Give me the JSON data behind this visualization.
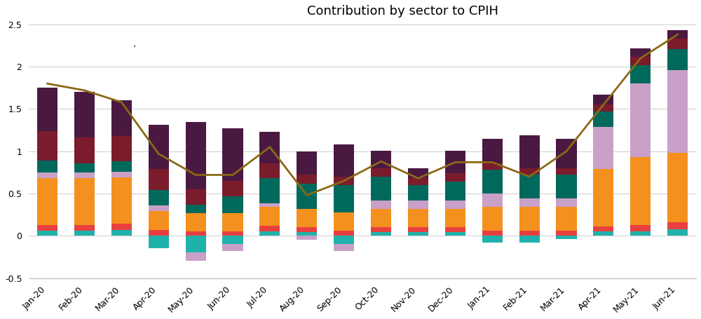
{
  "months": [
    "Jan-20",
    "Feb-20",
    "Mar-20",
    "Apr-20",
    "May-20",
    "Jun-20",
    "Jul-20",
    "Aug-20",
    "Sep-20",
    "Oct-20",
    "Nov-20",
    "Dec-20",
    "Jan-21",
    "Feb-21",
    "Mar-21",
    "Apr-21",
    "May-21",
    "Jun-21"
  ],
  "title": "Contribution by sector to CPIH",
  "ylim": [
    -0.5,
    2.5
  ],
  "yticks": [
    -0.5,
    0,
    0.5,
    1,
    1.5,
    2,
    2.5
  ],
  "line_color": "#8B6914",
  "line_values": [
    1.8,
    1.72,
    1.58,
    0.97,
    0.72,
    0.72,
    1.05,
    0.48,
    0.65,
    0.88,
    0.68,
    0.87,
    0.87,
    0.7,
    1.0,
    1.55,
    2.1,
    2.38
  ],
  "background_color": "#FFFFFF",
  "grid_color": "#CCCCCC",
  "colors": [
    "#20B2AA",
    "#E84040",
    "#F4901E",
    "#C9A0C8",
    "#00695C",
    "#7B1C2C",
    "#4A1942"
  ],
  "segments": [
    [
      0.06,
      0.07,
      0.55,
      0.07,
      0.14,
      0.35,
      0.51
    ],
    [
      0.06,
      0.07,
      0.55,
      0.07,
      0.11,
      0.3,
      0.54
    ],
    [
      0.07,
      0.07,
      0.55,
      0.07,
      0.12,
      0.3,
      0.42
    ],
    [
      -0.15,
      0.07,
      0.22,
      0.07,
      0.18,
      0.25,
      0.52
    ],
    [
      -0.2,
      0.05,
      0.22,
      -0.1,
      0.1,
      0.18,
      0.8
    ],
    [
      -0.1,
      0.05,
      0.22,
      -0.08,
      0.2,
      0.18,
      0.62
    ],
    [
      0.05,
      0.07,
      0.22,
      0.04,
      0.3,
      0.18,
      0.37
    ],
    [
      0.04,
      0.06,
      0.22,
      -0.05,
      0.3,
      0.1,
      0.28
    ],
    [
      -0.1,
      0.06,
      0.22,
      -0.08,
      0.32,
      0.1,
      0.38
    ],
    [
      0.04,
      0.06,
      0.22,
      0.1,
      0.28,
      0.1,
      0.21
    ],
    [
      0.04,
      0.06,
      0.22,
      0.1,
      0.18,
      0.08,
      0.12
    ],
    [
      0.04,
      0.06,
      0.22,
      0.1,
      0.22,
      0.1,
      0.27
    ],
    [
      -0.08,
      0.06,
      0.28,
      0.16,
      0.28,
      0.08,
      0.29
    ],
    [
      -0.08,
      0.06,
      0.28,
      0.1,
      0.28,
      0.08,
      0.39
    ],
    [
      -0.04,
      0.06,
      0.28,
      0.1,
      0.28,
      0.08,
      0.35
    ],
    [
      0.05,
      0.06,
      0.68,
      0.5,
      0.18,
      0.08,
      0.12
    ],
    [
      0.05,
      0.08,
      0.8,
      0.87,
      0.22,
      0.1,
      0.1
    ],
    [
      0.08,
      0.08,
      0.82,
      0.98,
      0.25,
      0.12,
      0.1
    ]
  ]
}
